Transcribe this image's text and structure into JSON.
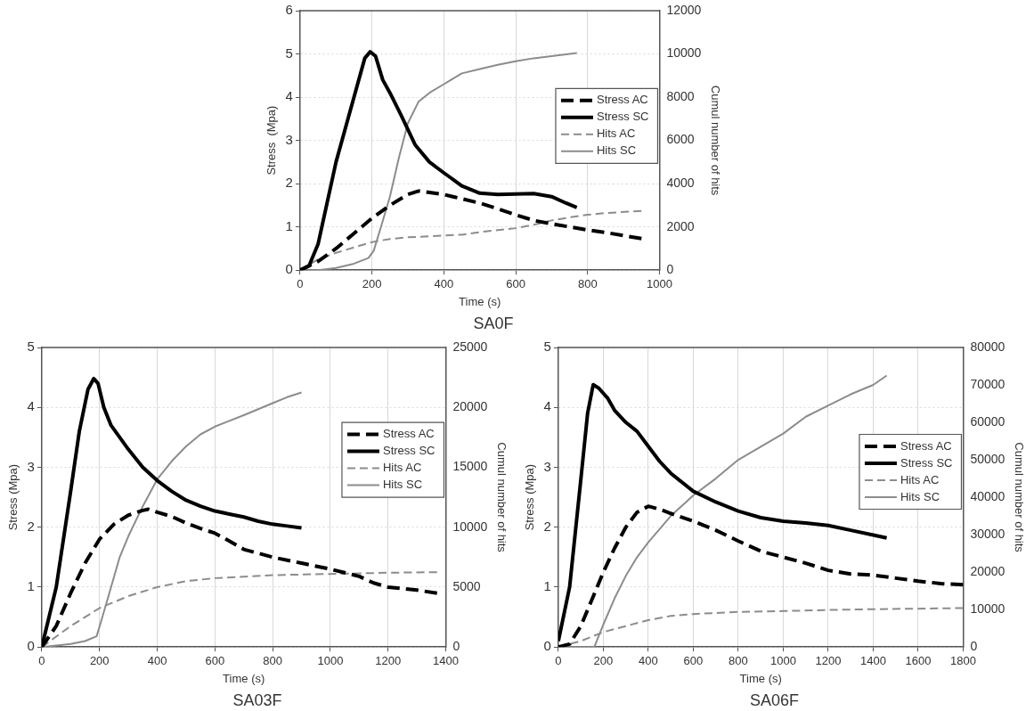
{
  "chart_data": [
    {
      "type": "line",
      "title": "SA0F",
      "xlabel": "Time (s)",
      "ylabel": "Stress  (Mpa)",
      "y2label": "Cumul number of hits",
      "xlim": [
        0,
        1000
      ],
      "xticks": [
        0,
        200,
        400,
        600,
        800,
        1000
      ],
      "ylim": [
        0,
        6
      ],
      "yticks": [
        0,
        1,
        2,
        3,
        4,
        5,
        6
      ],
      "y2lim": [
        0,
        12000
      ],
      "y2ticks": [
        0,
        2000,
        4000,
        6000,
        8000,
        10000,
        12000
      ],
      "grid": true,
      "legend": "right",
      "marker": "none",
      "series": [
        {
          "name": "Stress AC",
          "color": "#000000",
          "line_style": "dashed",
          "x": [
            0,
            50,
            100,
            150,
            200,
            250,
            300,
            330,
            400,
            450,
            500,
            550,
            600,
            650,
            700,
            750,
            800,
            850,
            900,
            950
          ],
          "values": [
            0,
            0.2,
            0.5,
            0.85,
            1.2,
            1.5,
            1.75,
            1.83,
            1.75,
            1.65,
            1.55,
            1.42,
            1.28,
            1.15,
            1.07,
            1,
            0.93,
            0.87,
            0.8,
            0.73
          ]
        },
        {
          "name": "Stress SC",
          "color": "#000000",
          "line_style": "solid",
          "x": [
            0,
            25,
            50,
            100,
            150,
            180,
            195,
            210,
            230,
            250,
            280,
            320,
            360,
            400,
            450,
            500,
            550,
            600,
            650,
            700,
            740,
            770
          ],
          "values": [
            0,
            0.1,
            0.6,
            2.5,
            4,
            4.9,
            5.05,
            4.95,
            4.4,
            4.1,
            3.6,
            2.9,
            2.5,
            2.25,
            1.95,
            1.78,
            1.75,
            1.76,
            1.77,
            1.7,
            1.55,
            1.45
          ]
        },
        {
          "name": "Hits AC",
          "color": "#8c8c8c",
          "line_style": "dashed",
          "axis": "y2",
          "x": [
            0,
            50,
            100,
            200,
            250,
            300,
            400,
            450,
            500,
            600,
            650,
            700,
            750,
            800,
            850,
            950
          ],
          "values": [
            0,
            500,
            800,
            1300,
            1440,
            1520,
            1600,
            1640,
            1760,
            1940,
            2100,
            2300,
            2440,
            2560,
            2640,
            2740
          ]
        },
        {
          "name": "Hits SC",
          "color": "#8c8c8c",
          "line_style": "solid",
          "axis": "y2",
          "x": [
            0,
            50,
            100,
            150,
            190,
            205,
            225,
            250,
            275,
            300,
            330,
            360,
            400,
            450,
            500,
            550,
            600,
            650,
            700,
            770
          ],
          "values": [
            0,
            0,
            100,
            300,
            560,
            900,
            2000,
            3400,
            5200,
            6800,
            7800,
            8200,
            8600,
            9100,
            9300,
            9500,
            9660,
            9800,
            9900,
            10040
          ]
        }
      ]
    },
    {
      "type": "line",
      "title": "SA03F",
      "xlabel": "Time (s)",
      "ylabel": "Stress (Mpa)",
      "y2label": "Cumul number of hits",
      "xlim": [
        0,
        1400
      ],
      "xticks": [
        0,
        200,
        400,
        600,
        800,
        1000,
        1200,
        1400
      ],
      "ylim": [
        0,
        5
      ],
      "yticks": [
        0,
        1,
        2,
        3,
        4,
        5
      ],
      "y2lim": [
        0,
        25000
      ],
      "y2ticks": [
        0,
        5000,
        10000,
        15000,
        20000,
        25000
      ],
      "grid": true,
      "legend": "right",
      "marker": "none",
      "series": [
        {
          "name": "Stress AC",
          "color": "#000000",
          "line_style": "dashed",
          "x": [
            0,
            50,
            100,
            150,
            200,
            250,
            300,
            350,
            370,
            400,
            450,
            500,
            550,
            600,
            650,
            700,
            800,
            900,
            1000,
            1100,
            1150,
            1200,
            1300,
            1370
          ],
          "values": [
            0,
            0.35,
            0.9,
            1.4,
            1.8,
            2.05,
            2.2,
            2.28,
            2.3,
            2.25,
            2.18,
            2.07,
            1.98,
            1.9,
            1.77,
            1.63,
            1.5,
            1.4,
            1.3,
            1.18,
            1.07,
            1,
            0.95,
            0.9
          ]
        },
        {
          "name": "Stress SC",
          "color": "#000000",
          "line_style": "solid",
          "x": [
            0,
            50,
            100,
            130,
            160,
            180,
            195,
            215,
            240,
            300,
            350,
            400,
            450,
            500,
            550,
            600,
            650,
            700,
            750,
            800,
            850,
            900
          ],
          "values": [
            0,
            1,
            2.6,
            3.6,
            4.3,
            4.48,
            4.4,
            4,
            3.7,
            3.3,
            3,
            2.78,
            2.6,
            2.45,
            2.35,
            2.27,
            2.22,
            2.17,
            2.1,
            2.05,
            2.02,
            1.99
          ]
        },
        {
          "name": "Hits AC",
          "color": "#8c8c8c",
          "line_style": "dashed",
          "axis": "y2",
          "x": [
            0,
            100,
            200,
            300,
            400,
            500,
            600,
            800,
            1000,
            1200,
            1370
          ],
          "values": [
            0,
            1750,
            3250,
            4250,
            5000,
            5500,
            5750,
            6000,
            6100,
            6200,
            6250
          ]
        },
        {
          "name": "Hits SC",
          "color": "#8c8c8c",
          "line_style": "solid",
          "axis": "y2",
          "x": [
            0,
            100,
            150,
            190,
            210,
            240,
            270,
            300,
            350,
            400,
            450,
            500,
            550,
            600,
            700,
            800,
            850,
            900
          ],
          "values": [
            0,
            250,
            500,
            900,
            2500,
            5000,
            7500,
            9250,
            11750,
            14000,
            15500,
            16750,
            17750,
            18400,
            19350,
            20350,
            20850,
            21250
          ]
        }
      ]
    },
    {
      "type": "line",
      "title": "SA06F",
      "xlabel": "Time (s)",
      "ylabel": "Stress (Mpa)",
      "y2label": "Cumul number of hits",
      "xlim": [
        0,
        1800
      ],
      "xticks": [
        0,
        200,
        400,
        600,
        800,
        1000,
        1200,
        1400,
        1600,
        1800
      ],
      "ylim": [
        0,
        5
      ],
      "yticks": [
        0,
        1,
        2,
        3,
        4,
        5
      ],
      "y2lim": [
        0,
        80000
      ],
      "y2ticks": [
        0,
        10000,
        20000,
        30000,
        40000,
        50000,
        60000,
        70000,
        80000
      ],
      "grid": true,
      "legend": "right",
      "marker": "none",
      "series": [
        {
          "name": "Stress AC",
          "color": "#000000",
          "line_style": "dashed",
          "x": [
            0,
            50,
            100,
            150,
            200,
            250,
            300,
            350,
            400,
            450,
            500,
            600,
            700,
            800,
            900,
            1000,
            1100,
            1200,
            1300,
            1400,
            1500,
            1600,
            1700,
            1800
          ],
          "values": [
            0,
            0.05,
            0.35,
            0.8,
            1.25,
            1.65,
            2,
            2.25,
            2.35,
            2.3,
            2.23,
            2.1,
            1.95,
            1.77,
            1.6,
            1.5,
            1.4,
            1.28,
            1.22,
            1.2,
            1.15,
            1.1,
            1.06,
            1.04
          ]
        },
        {
          "name": "Stress SC",
          "color": "#000000",
          "line_style": "solid",
          "x": [
            0,
            50,
            100,
            130,
            155,
            180,
            220,
            250,
            300,
            350,
            400,
            450,
            500,
            600,
            700,
            800,
            900,
            1000,
            1100,
            1200,
            1300,
            1400,
            1460
          ],
          "values": [
            0.1,
            1,
            2.8,
            3.9,
            4.38,
            4.32,
            4.15,
            3.95,
            3.75,
            3.6,
            3.35,
            3.1,
            2.9,
            2.6,
            2.42,
            2.27,
            2.16,
            2.1,
            2.07,
            2.03,
            1.95,
            1.87,
            1.82
          ]
        },
        {
          "name": "Hits AC",
          "color": "#8c8c8c",
          "line_style": "dashed",
          "axis": "y2",
          "x": [
            0,
            100,
            200,
            300,
            400,
            500,
            600,
            800,
            1000,
            1200,
            1400,
            1800
          ],
          "values": [
            0,
            1600,
            4000,
            5600,
            7200,
            8300,
            8800,
            9400,
            9600,
            9900,
            10100,
            10400
          ]
        },
        {
          "name": "Hits SC",
          "color": "#8c8c8c",
          "line_style": "solid",
          "axis": "y2",
          "x": [
            0,
            160,
            200,
            250,
            300,
            350,
            400,
            500,
            600,
            700,
            800,
            900,
            1000,
            1100,
            1200,
            1300,
            1400,
            1460
          ],
          "values": [
            0,
            0,
            6000,
            13000,
            19000,
            24000,
            28000,
            35000,
            40500,
            45000,
            50000,
            53500,
            57000,
            61500,
            64500,
            67500,
            70000,
            72500
          ]
        }
      ]
    }
  ]
}
